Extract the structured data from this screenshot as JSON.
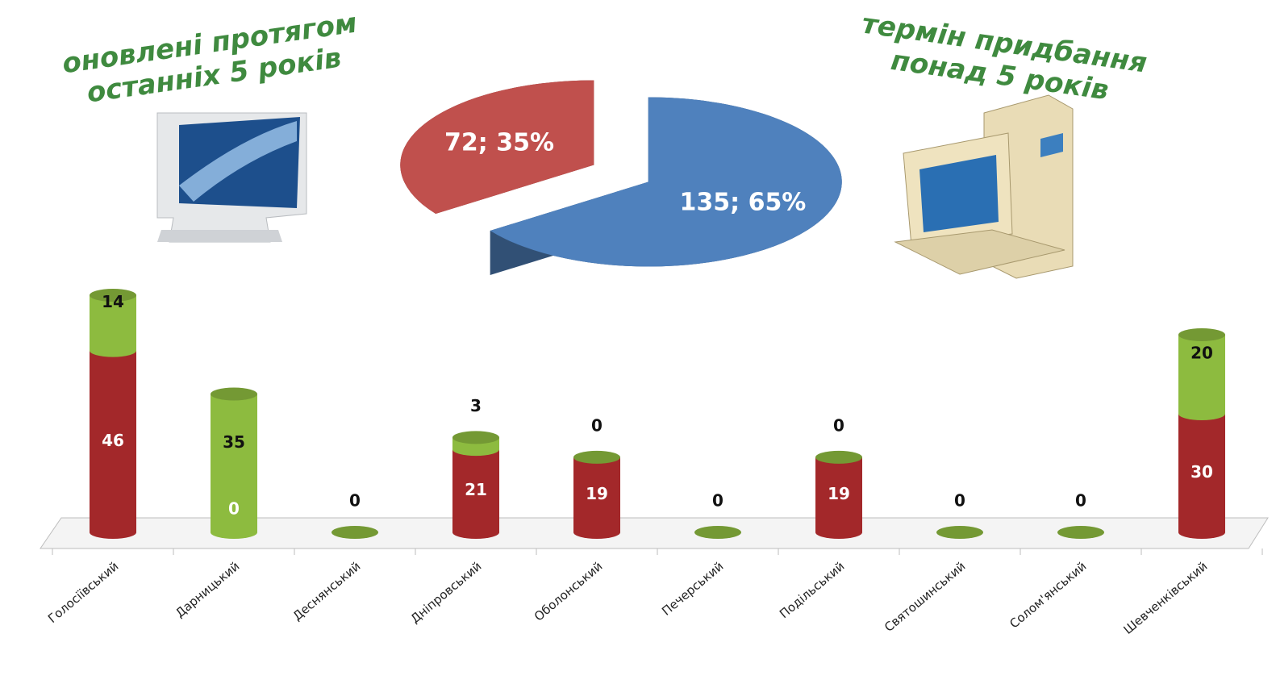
{
  "chart_data": [
    {
      "type": "pie",
      "values": [
        72,
        135
      ],
      "value_labels": [
        "72; 35%",
        "135; 65%"
      ],
      "colors": [
        "#c0504d",
        "#4f81bd"
      ],
      "annotations": [
        {
          "lines": [
            "оновлені протягом",
            "останніх 5 років"
          ]
        },
        {
          "lines": [
            "термін придбання",
            "понад 5 років"
          ]
        }
      ]
    },
    {
      "type": "bar",
      "stacked": true,
      "categories": [
        "Голосіївський",
        "Дарницький",
        "Деснянський",
        "Дніпровський",
        "Оболонський",
        "Печерський",
        "Подільський",
        "Святошинський",
        "Солом'янський",
        "Шевченківський"
      ],
      "series": [
        {
          "color": "#a3282a",
          "values": [
            46,
            0,
            0,
            21,
            19,
            0,
            19,
            0,
            0,
            30
          ],
          "value_labels": [
            "46",
            "0",
            null,
            "21",
            "19",
            null,
            "19",
            null,
            null,
            "30"
          ]
        },
        {
          "color": "#8dbb3f",
          "values": [
            14,
            35,
            0,
            3,
            0,
            0,
            0,
            0,
            0,
            20
          ]
        }
      ]
    }
  ]
}
